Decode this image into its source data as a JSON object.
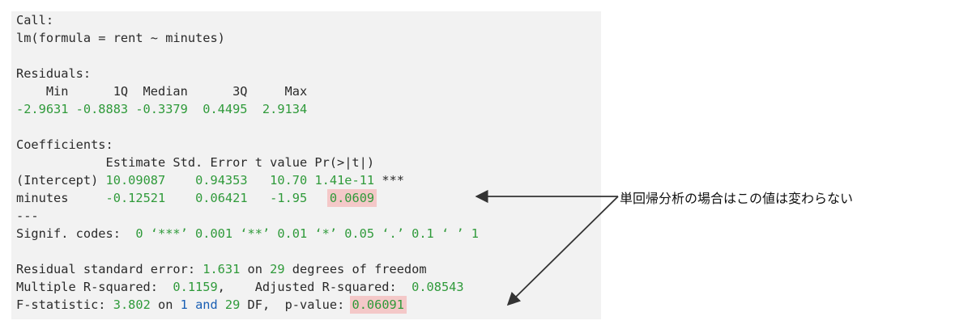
{
  "call_label": "Call:",
  "call_formula": "lm(formula = rent ~ minutes)",
  "residuals_label": "Residuals:",
  "residuals_header": "    Min      1Q  Median      3Q     Max ",
  "residuals_values": "-2.9631 -0.8883 -0.3379  0.4495  2.9134 ",
  "coefficients_label": "Coefficients:",
  "coef_header": "            Estimate Std. Error t value Pr(>|t|)    ",
  "intercept_row": {
    "name": "(Intercept)",
    "estimate": "10.09087",
    "std_error": "0.94353",
    "t_value": "10.70",
    "p_value": "1.41e-11",
    "stars": "***"
  },
  "minutes_row": {
    "name": "minutes",
    "estimate": "-0.12521",
    "std_error": "0.06421",
    "t_value": "-1.95",
    "p_value": "0.0609"
  },
  "separator": "---",
  "signif": {
    "label": "Signif. codes:  ",
    "codes": "0 ‘***’ 0.001 ‘**’ 0.01 ‘*’ 0.05 ‘.’ 0.1 ‘ ’ 1"
  },
  "rse": {
    "label": "Residual standard error: ",
    "value": "1.631",
    "on": " on ",
    "df": "29",
    "suffix": " degrees of freedom"
  },
  "rsq": {
    "label": "Multiple R-squared:  ",
    "value": "0.1159",
    "adj_label": ",\tAdjusted R-squared:  ",
    "adj_value": "0.08543"
  },
  "fstat": {
    "label": "F-statistic: ",
    "value": "3.802",
    "on": " on ",
    "df1": "1",
    "and": " and ",
    "df2": "29",
    "df_suffix": " DF,  p-value: ",
    "p_value": "0.06091"
  },
  "annotation": "単回帰分析の場合はこの値は変わらない"
}
